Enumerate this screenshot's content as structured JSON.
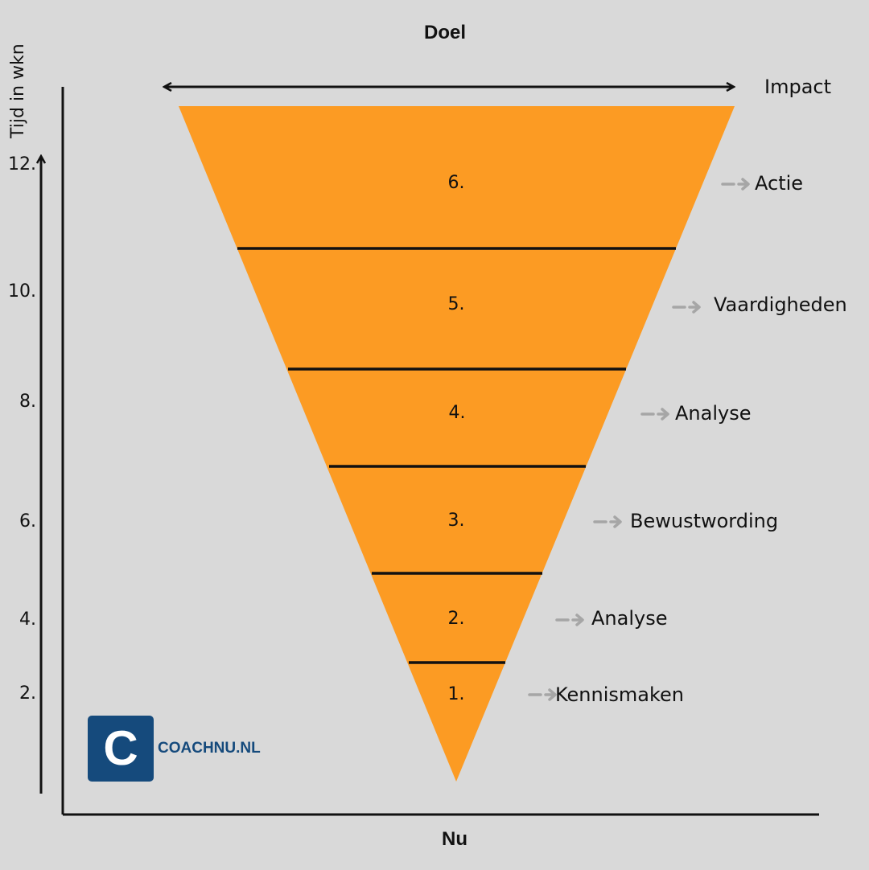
{
  "title_top": "Doel",
  "title_bottom": "Nu",
  "y_axis_label": "Tijd in wkn",
  "x_axis_label": "Impact",
  "y_ticks": [
    "12.",
    "10.",
    "8.",
    "6.",
    "4.",
    "2."
  ],
  "stages": [
    {
      "number": "6.",
      "label": "Actie"
    },
    {
      "number": "5.",
      "label": "Vaardigheden"
    },
    {
      "number": "4.",
      "label": "Analyse"
    },
    {
      "number": "3.",
      "label": "Bewustwording"
    },
    {
      "number": "2.",
      "label": "Analyse"
    },
    {
      "number": "1.",
      "label": "Kennismaken"
    }
  ],
  "logo": {
    "letter": "C",
    "text": "COACHNU.NL"
  },
  "colors": {
    "background": "#d9d9d9",
    "funnel": "#fc9b23",
    "arrow_hint": "#a6a6a6",
    "logo": "#154a7c",
    "ink": "#111111"
  }
}
